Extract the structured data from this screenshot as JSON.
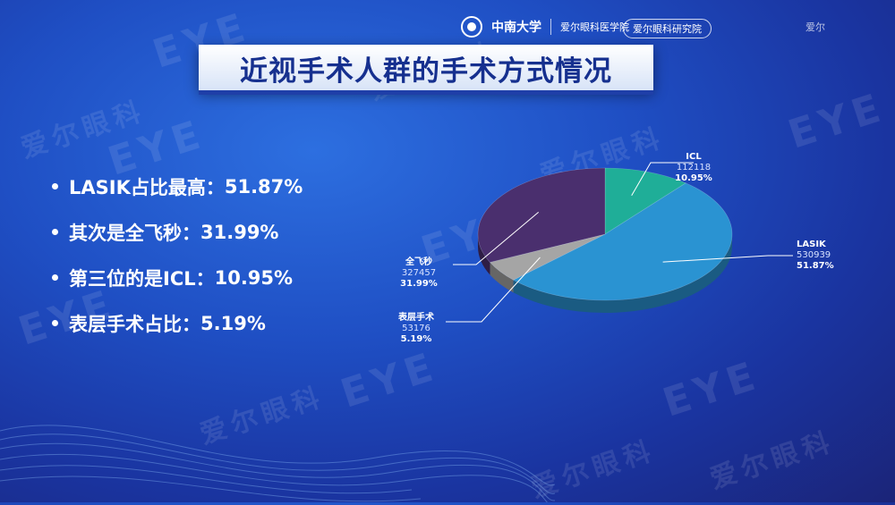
{
  "header": {
    "university": "中南大学",
    "department": "爱尔眼科医学院",
    "badge": "爱尔眼科研究院",
    "corner_text": "爱尔"
  },
  "watermark": {
    "brand": "EYE",
    "cn": "爱尔眼科"
  },
  "title": "近视手术人群的手术方式情况",
  "bullets": [
    {
      "text": "LASIK占比最高：",
      "value": "51.87%"
    },
    {
      "text": "其次是全飞秒：",
      "value": "31.99%"
    },
    {
      "text": "第三位的是ICL：",
      "value": "10.95%"
    },
    {
      "text": "表层手术占比：",
      "value": "5.19%"
    }
  ],
  "chart_data": {
    "type": "pie",
    "title": "",
    "slices": [
      {
        "name": "ICL",
        "count": "112118",
        "percent": "10.95%",
        "value": 10.95,
        "color": "#1fae98"
      },
      {
        "name": "LASIK",
        "count": "530939",
        "percent": "51.87%",
        "value": 51.87,
        "color": "#2a93d2"
      },
      {
        "name": "表层手术",
        "count": "53176",
        "percent": "5.19%",
        "value": 5.19,
        "color": "#a5a5a5"
      },
      {
        "name": "全飞秒",
        "count": "327457",
        "percent": "31.99%",
        "value": 31.99,
        "color": "#4a2f6e"
      }
    ]
  }
}
